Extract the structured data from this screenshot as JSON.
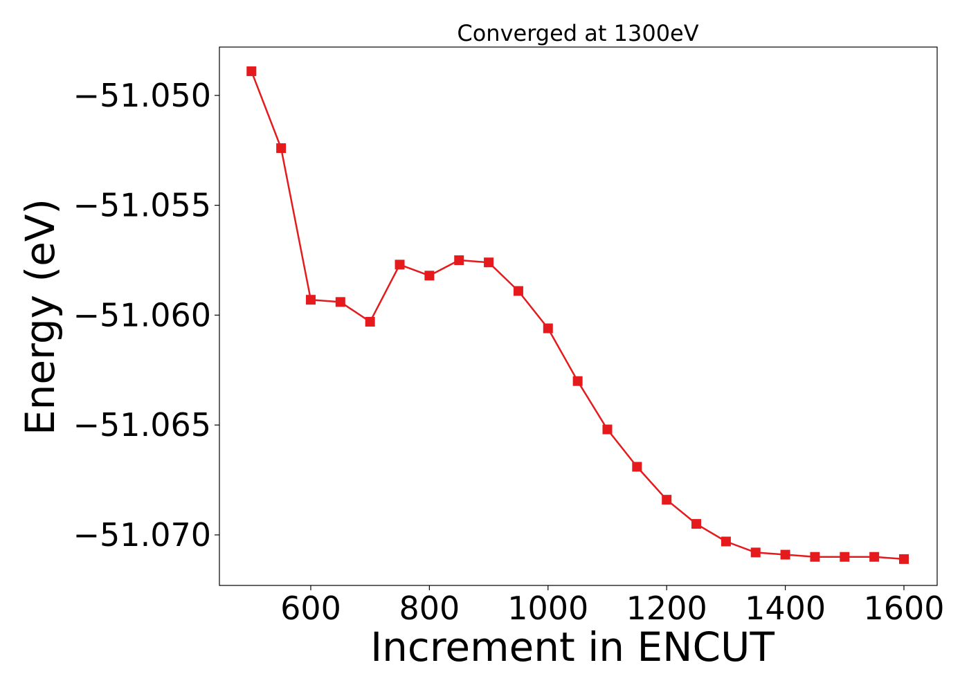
{
  "chart_data": {
    "type": "line",
    "title": "Converged at 1300eV",
    "xlabel": "Increment in ENCUT",
    "ylabel": "Energy (eV)",
    "xlim": [
      446,
      1656
    ],
    "ylim": [
      -51.0723,
      -51.0478
    ],
    "x_ticks": [
      600,
      800,
      1000,
      1200,
      1400,
      1600
    ],
    "x_tick_labels": [
      "600",
      "800",
      "1000",
      "1200",
      "1400",
      "1600"
    ],
    "y_ticks": [
      -51.05,
      -51.055,
      -51.06,
      -51.065,
      -51.07
    ],
    "y_tick_labels": [
      "−51.050",
      "−51.055",
      "−51.060",
      "−51.065",
      "−51.070"
    ],
    "grid": false,
    "series": [
      {
        "color": "#e41a1c",
        "marker": "square",
        "x": [
          500,
          550,
          600,
          650,
          700,
          750,
          800,
          850,
          900,
          950,
          1000,
          1050,
          1100,
          1150,
          1200,
          1250,
          1300,
          1350,
          1400,
          1450,
          1500,
          1550,
          1600
        ],
        "y": [
          -51.0489,
          -51.0524,
          -51.0593,
          -51.0594,
          -51.0603,
          -51.0577,
          -51.0582,
          -51.0575,
          -51.0576,
          -51.0589,
          -51.0606,
          -51.063,
          -51.0652,
          -51.0669,
          -51.0684,
          -51.0695,
          -51.0703,
          -51.0708,
          -51.0709,
          -51.071,
          -51.071,
          -51.071,
          -51.0711
        ]
      }
    ]
  }
}
